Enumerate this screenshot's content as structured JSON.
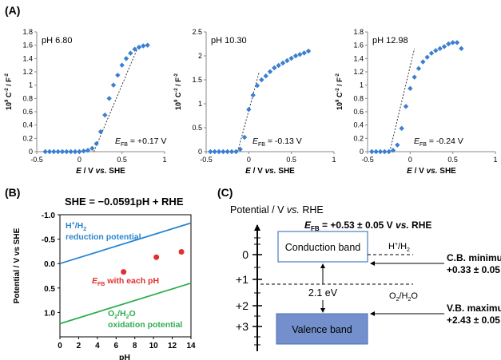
{
  "panel_labels": {
    "a": "(A)",
    "b": "(B)",
    "c": "(C)"
  },
  "colors": {
    "marker": "#3a7fd0",
    "red": "#e03030",
    "blue_line": "#2a86cf",
    "green_line": "#2fae4e",
    "cb_border": "#4a7ac8",
    "vb_fill": "#6e8cc8"
  },
  "panel_a": {
    "ylabel_prefix": "10",
    "ylabel_exp": "9",
    "ylabel_rest": " C",
    "ylabel_exp2": "-2",
    "ylabel_tail": " / F",
    "ylabel_exp3": "-2",
    "xlabel_e": "E",
    "xlabel_mid": " / V ",
    "xlabel_vs": "vs.",
    "xlabel_she": " SHE"
  },
  "panel_b": {
    "equation": "SHE = −0.0591pH + RHE",
    "h_label_1": "H",
    "h_label_sup": "+",
    "h_label_2": "/H",
    "h_label_sub": "2",
    "h_label_line2": "reduction potential",
    "efb_e": "E",
    "efb_sub": "FB",
    "efb_rest": " with each pH",
    "o_label_1": "O",
    "o_label_sub1": "2",
    "o_label_2": "/H",
    "o_label_sub2": "2",
    "o_label_3": "O",
    "o_label_line2": "oxidation potential",
    "ylabel": "Potential / V vs SHE",
    "xlabel": "pH"
  },
  "panel_c": {
    "axis_title": "Potential / V ",
    "axis_title_vs": "vs.",
    "axis_title_rhe": " RHE",
    "efb_e": "E",
    "efb_sub": "FB",
    "efb_rest": " = +0.53 ± 0.05 V ",
    "efb_vs": "vs.",
    "efb_rhe": " RHE",
    "ticks": [
      "0",
      "+1",
      "+2",
      "+3"
    ],
    "conduction_band": "Conduction band",
    "valence_band": "Valence band",
    "h_label_1": "H",
    "h_label_sup": "+",
    "h_label_2": "/H",
    "h_label_sub": "2",
    "o_label_1": "O",
    "o_label_sub1": "2",
    "o_label_2": "/H",
    "o_label_sub2": "2",
    "o_label_3": "O",
    "gap": "2.1 eV",
    "cb_title": "C.B. minimum",
    "cb_value": "+0.33 ± 0.05 V",
    "vb_title": "V.B. maximum",
    "vb_value": "+2.43 ± 0.05 V"
  },
  "chart_data": [
    {
      "type": "scatter",
      "title": "pH 6.80",
      "annotation_e": "E",
      "annotation_sub": "FB",
      "annotation_rest": " = +0.17 V",
      "xlim": [
        -0.5,
        1
      ],
      "ylim": [
        0,
        1.8
      ],
      "xticks": [
        "-0.5",
        "0",
        "0.5",
        "1"
      ],
      "yticks": [
        "0",
        "0.2",
        "0.4",
        "0.6",
        "0.8",
        "1",
        "1.2",
        "1.4",
        "1.6",
        "1.8"
      ],
      "x": [
        -0.4,
        -0.35,
        -0.3,
        -0.25,
        -0.2,
        -0.15,
        -0.1,
        -0.05,
        0.0,
        0.05,
        0.1,
        0.15,
        0.2,
        0.25,
        0.3,
        0.35,
        0.4,
        0.45,
        0.5,
        0.55,
        0.6,
        0.65,
        0.7,
        0.75,
        0.8
      ],
      "y": [
        0.0,
        0.0,
        0.0,
        0.0,
        0.0,
        0.0,
        0.0,
        0.0,
        0.0,
        0.01,
        0.02,
        0.05,
        0.12,
        0.3,
        0.55,
        0.8,
        1.0,
        1.15,
        1.3,
        1.4,
        1.48,
        1.54,
        1.57,
        1.59,
        1.6
      ],
      "fit_line": {
        "x": [
          0.17,
          0.68
        ],
        "y": [
          0.0,
          1.55
        ]
      }
    },
    {
      "type": "scatter",
      "title": "pH 10.30",
      "annotation_e": "E",
      "annotation_sub": "FB",
      "annotation_rest": " = -0.13 V",
      "xlim": [
        -0.5,
        1
      ],
      "ylim": [
        0,
        2.5
      ],
      "xticks": [
        "-0.5",
        "0",
        "0.5",
        "1"
      ],
      "yticks": [
        "0",
        "0.5",
        "1",
        "1.5",
        "2",
        "2.5"
      ],
      "x": [
        -0.45,
        -0.4,
        -0.35,
        -0.3,
        -0.25,
        -0.2,
        -0.15,
        -0.1,
        -0.05,
        0.0,
        0.05,
        0.1,
        0.15,
        0.2,
        0.25,
        0.3,
        0.35,
        0.4,
        0.45,
        0.5,
        0.55,
        0.6,
        0.65,
        0.7
      ],
      "y": [
        0.0,
        0.0,
        0.0,
        0.0,
        0.0,
        0.0,
        0.0,
        0.05,
        0.3,
        0.88,
        1.18,
        1.38,
        1.5,
        1.58,
        1.67,
        1.75,
        1.8,
        1.85,
        1.9,
        1.95,
        2.0,
        2.03,
        2.06,
        2.1
      ],
      "fit_line": {
        "x": [
          -0.13,
          0.12
        ],
        "y": [
          0.0,
          1.65
        ]
      }
    },
    {
      "type": "scatter",
      "title": "pH 12.98",
      "annotation_e": "E",
      "annotation_sub": "FB",
      "annotation_rest": " = -0.24 V",
      "xlim": [
        -0.5,
        1
      ],
      "ylim": [
        0,
        1.8
      ],
      "xticks": [
        "-0.5",
        "0",
        "0.5",
        "1"
      ],
      "yticks": [
        "0",
        "0.2",
        "0.4",
        "0.6",
        "0.8",
        "1",
        "1.2",
        "1.4",
        "1.6",
        "1.8"
      ],
      "x": [
        -0.45,
        -0.4,
        -0.35,
        -0.3,
        -0.25,
        -0.2,
        -0.15,
        -0.1,
        -0.05,
        0.0,
        0.05,
        0.1,
        0.15,
        0.2,
        0.25,
        0.3,
        0.35,
        0.4,
        0.45,
        0.5,
        0.55,
        0.6
      ],
      "y": [
        0.0,
        0.0,
        0.0,
        0.0,
        0.0,
        0.02,
        0.1,
        0.35,
        0.68,
        0.95,
        1.12,
        1.25,
        1.35,
        1.42,
        1.48,
        1.52,
        1.55,
        1.58,
        1.62,
        1.64,
        1.64,
        1.55
      ],
      "fit_line": {
        "x": [
          -0.24,
          0.05
        ],
        "y": [
          0.0,
          1.55
        ]
      }
    },
    {
      "type": "line",
      "xlim": [
        0,
        14
      ],
      "ylim": [
        1.5,
        -1.0
      ],
      "xticks": [
        "0",
        "2",
        "4",
        "6",
        "8",
        "10",
        "12",
        "14"
      ],
      "yticks": [
        "-1.0",
        "-0.5",
        "0.0",
        "0.5",
        "1.0"
      ],
      "series": [
        {
          "x": [
            0,
            14
          ],
          "y": [
            0.0,
            -0.83
          ]
        },
        {
          "x": [
            0,
            14
          ],
          "y": [
            1.23,
            0.4
          ]
        }
      ],
      "points": {
        "x": [
          6.8,
          10.3,
          12.98
        ],
        "y": [
          0.17,
          -0.13,
          -0.24
        ]
      }
    }
  ]
}
